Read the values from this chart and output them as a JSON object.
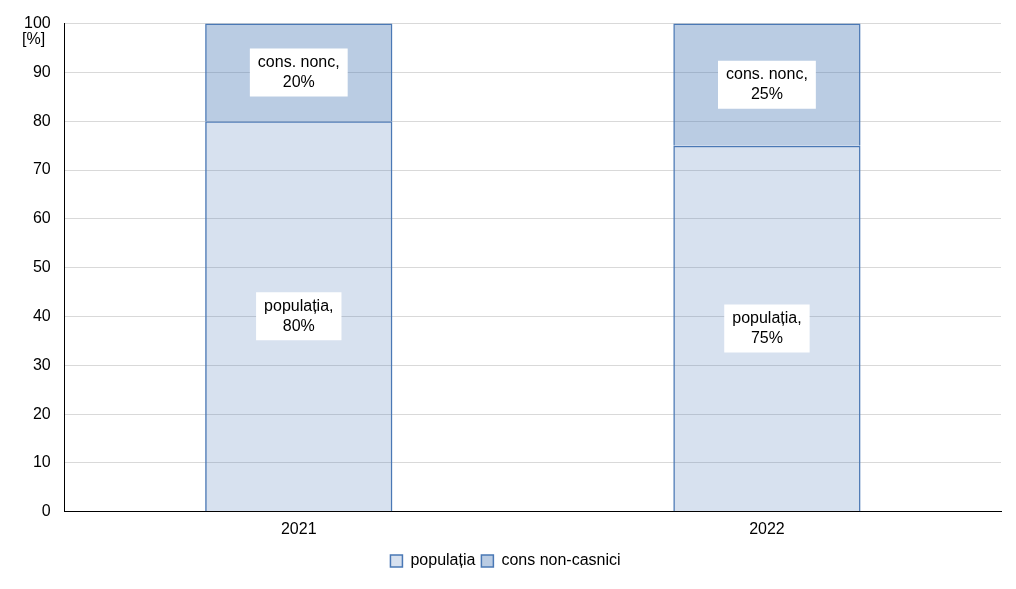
{
  "chart_data": {
    "type": "bar",
    "stacked": true,
    "ylabel": "[%]",
    "categories": [
      "2021",
      "2022"
    ],
    "series": [
      {
        "name": "populația",
        "color": "#4a78b5",
        "values": [
          80,
          75
        ],
        "value_labels": [
          "populația, 80%",
          "populația, 75%"
        ]
      },
      {
        "name": "cons non-casnici",
        "color": "#4a78b5",
        "values": [
          20,
          25
        ],
        "value_labels": [
          "cons. nonc, 20%",
          "cons. nonc, 25%"
        ]
      }
    ],
    "ylim": [
      0,
      100
    ],
    "yticks": [
      0,
      10,
      20,
      30,
      40,
      50,
      60,
      70,
      80,
      90,
      100
    ],
    "grid": "y",
    "legend": "bottom"
  }
}
